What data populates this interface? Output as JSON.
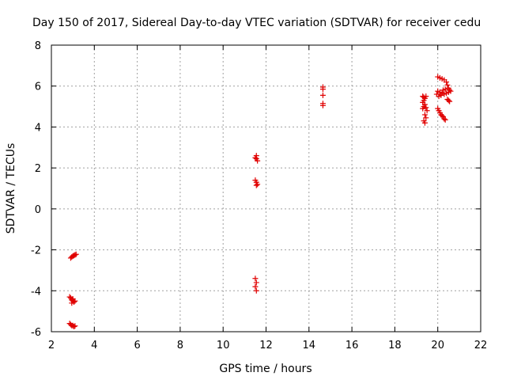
{
  "chart_data": {
    "type": "scatter",
    "title": "Day 150 of 2017, Sidereal Day-to-day VTEC variation (SDTVAR) for receiver cedu",
    "xlabel": "GPS time / hours",
    "ylabel": "SDTVAR / TECUs",
    "xlim": [
      2,
      22
    ],
    "ylim": [
      -6,
      8
    ],
    "xticks": [
      2,
      4,
      6,
      8,
      10,
      12,
      14,
      16,
      18,
      20,
      22
    ],
    "yticks": [
      -6,
      -4,
      -2,
      0,
      2,
      4,
      6,
      8
    ],
    "grid": true,
    "marker": "+",
    "color": "#e00000",
    "series": [
      {
        "name": "SDTVAR",
        "points": [
          [
            2.9,
            -2.4
          ],
          [
            2.95,
            -2.35
          ],
          [
            3.0,
            -2.3
          ],
          [
            3.05,
            -2.28
          ],
          [
            3.1,
            -2.25
          ],
          [
            3.15,
            -2.22
          ],
          [
            2.85,
            -4.3
          ],
          [
            2.9,
            -4.35
          ],
          [
            2.95,
            -4.45
          ],
          [
            3.0,
            -4.5
          ],
          [
            3.05,
            -4.55
          ],
          [
            3.1,
            -4.5
          ],
          [
            2.95,
            -4.6
          ],
          [
            3.0,
            -4.4
          ],
          [
            2.85,
            -5.6
          ],
          [
            2.9,
            -5.65
          ],
          [
            2.95,
            -5.7
          ],
          [
            3.0,
            -5.7
          ],
          [
            3.05,
            -5.75
          ],
          [
            3.1,
            -5.72
          ],
          [
            11.55,
            2.6
          ],
          [
            11.55,
            2.45
          ],
          [
            11.6,
            2.35
          ],
          [
            11.5,
            2.5
          ],
          [
            11.5,
            1.4
          ],
          [
            11.55,
            1.3
          ],
          [
            11.6,
            1.2
          ],
          [
            11.55,
            1.15
          ],
          [
            11.5,
            -3.4
          ],
          [
            11.55,
            -3.6
          ],
          [
            11.5,
            -3.8
          ],
          [
            11.55,
            -4.0
          ],
          [
            14.65,
            5.95
          ],
          [
            14.65,
            5.85
          ],
          [
            14.65,
            5.55
          ],
          [
            14.65,
            5.15
          ],
          [
            14.65,
            5.05
          ],
          [
            19.3,
            5.5
          ],
          [
            19.35,
            5.45
          ],
          [
            19.4,
            5.4
          ],
          [
            19.45,
            5.5
          ],
          [
            19.35,
            5.3
          ],
          [
            19.3,
            5.2
          ],
          [
            19.4,
            5.1
          ],
          [
            19.35,
            5.0
          ],
          [
            19.3,
            4.9
          ],
          [
            19.45,
            4.95
          ],
          [
            19.5,
            4.8
          ],
          [
            19.4,
            4.6
          ],
          [
            19.45,
            4.45
          ],
          [
            19.35,
            4.3
          ],
          [
            19.4,
            4.2
          ],
          [
            20.0,
            6.45
          ],
          [
            20.1,
            6.4
          ],
          [
            20.2,
            6.35
          ],
          [
            20.3,
            6.3
          ],
          [
            20.4,
            6.2
          ],
          [
            20.45,
            6.05
          ],
          [
            20.5,
            5.9
          ],
          [
            20.55,
            5.8
          ],
          [
            20.6,
            5.75
          ],
          [
            20.5,
            5.7
          ],
          [
            20.4,
            5.65
          ],
          [
            20.3,
            5.6
          ],
          [
            20.2,
            5.65
          ],
          [
            20.1,
            5.7
          ],
          [
            20.0,
            5.75
          ],
          [
            19.95,
            5.6
          ],
          [
            20.05,
            5.5
          ],
          [
            20.15,
            5.55
          ],
          [
            20.25,
            5.8
          ],
          [
            20.35,
            5.85
          ],
          [
            20.45,
            5.35
          ],
          [
            20.5,
            5.3
          ],
          [
            20.55,
            5.25
          ],
          [
            20.0,
            4.9
          ],
          [
            20.05,
            4.8
          ],
          [
            20.1,
            4.7
          ],
          [
            20.15,
            4.6
          ],
          [
            20.2,
            4.55
          ],
          [
            20.25,
            4.5
          ],
          [
            20.3,
            4.4
          ],
          [
            20.35,
            4.35
          ]
        ]
      }
    ]
  }
}
